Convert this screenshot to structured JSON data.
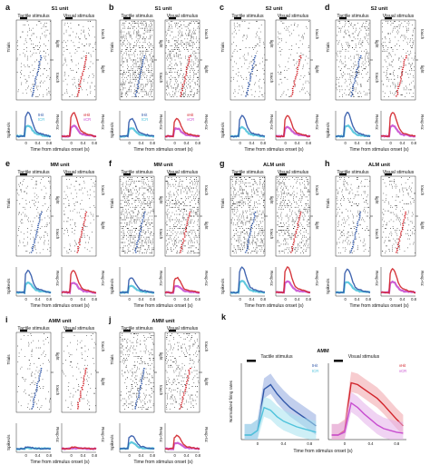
{
  "colors": {
    "tactile": "#2f56a8",
    "tactile_light": "#5a8fd6",
    "visual": "#d2232a",
    "visual_light": "#d54fbf",
    "tcr": "#4fc3dc",
    "vcr": "#c84fd0",
    "raster": "#222222"
  },
  "labels": {
    "tactile_stimulus": "Tactile stimulus",
    "visual_stimulus": "Visual stimulus",
    "trials": "Trials",
    "spikes": "Spikes/s",
    "resp_to": "Resp-to:",
    "touch": "touch",
    "light": "light",
    "time_axis": "Time from stimulus onset (s)",
    "normalized": "Normalized firing rates",
    "thit": "tHit",
    "tcr": "tCR",
    "vhit": "vHit",
    "vcr": "vCR",
    "amm_big": "AMM"
  },
  "panels": [
    {
      "letter": "a",
      "title": "S1 unit"
    },
    {
      "letter": "b",
      "title": "S1 unit"
    },
    {
      "letter": "c",
      "title": "S2 unit"
    },
    {
      "letter": "d",
      "title": "S2 unit"
    },
    {
      "letter": "e",
      "title": "MM unit"
    },
    {
      "letter": "f",
      "title": "MM unit"
    },
    {
      "letter": "g",
      "title": "ALM unit"
    },
    {
      "letter": "h",
      "title": "ALM unit"
    },
    {
      "letter": "i",
      "title": "AMM unit"
    },
    {
      "letter": "j",
      "title": "AMM unit"
    },
    {
      "letter": "k",
      "title": "AMM"
    }
  ],
  "chart_data": [
    {
      "type": "line",
      "title": "",
      "xlabel": "Time from stimulus onset (s)",
      "ylabel": "Normalized firing rates",
      "panel": "k-tactile",
      "x": [
        -0.2,
        -0.1,
        0,
        0.1,
        0.2,
        0.3,
        0.4,
        0.5,
        0.6,
        0.7,
        0.8,
        0.9
      ],
      "series": [
        {
          "name": "tHit",
          "values": [
            0.05,
            0.05,
            0.1,
            0.55,
            0.6,
            0.5,
            0.42,
            0.35,
            0.3,
            0.25,
            0.2,
            0.15
          ]
        },
        {
          "name": "tCR",
          "values": [
            0.05,
            0.05,
            0.1,
            0.35,
            0.32,
            0.25,
            0.2,
            0.17,
            0.14,
            0.12,
            0.1,
            0.08
          ]
        }
      ],
      "xlim": [
        -0.25,
        0.95
      ],
      "xticks": [
        "0",
        "0.4",
        "0.8"
      ]
    },
    {
      "type": "line",
      "title": "",
      "xlabel": "Time from stimulus onset (s)",
      "ylabel": "",
      "panel": "k-visual",
      "x": [
        -0.2,
        -0.1,
        0,
        0.1,
        0.2,
        0.3,
        0.4,
        0.5,
        0.6,
        0.7,
        0.8,
        0.9
      ],
      "series": [
        {
          "name": "vHit",
          "values": [
            0.05,
            0.05,
            0.1,
            0.62,
            0.6,
            0.55,
            0.5,
            0.45,
            0.38,
            0.3,
            0.22,
            0.15
          ]
        },
        {
          "name": "vCR",
          "values": [
            0.05,
            0.05,
            0.08,
            0.4,
            0.35,
            0.28,
            0.22,
            0.16,
            0.12,
            0.1,
            0.08,
            0.07
          ]
        }
      ],
      "xlim": [
        -0.25,
        0.95
      ],
      "xticks": [
        "0",
        "0.4",
        "0.8"
      ]
    }
  ]
}
